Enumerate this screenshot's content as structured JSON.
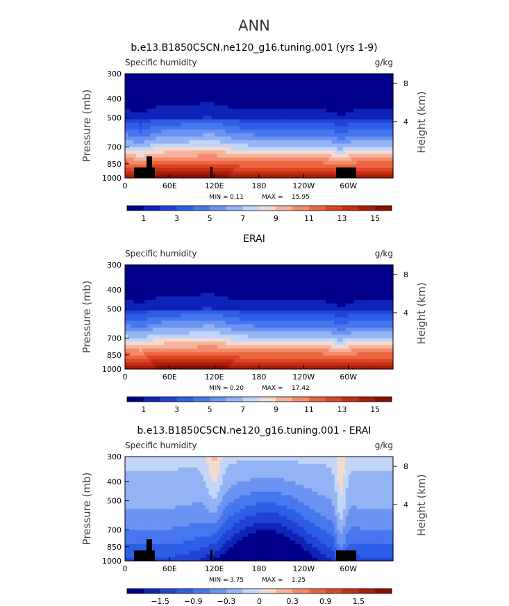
{
  "figure": {
    "title": "ANN"
  },
  "chart_data": [
    {
      "type": "heatmap",
      "title": "b.e13.B1850C5CN.ne120_g16.tuning.001 (yrs 1-9)",
      "variable": "Specific humidity",
      "units": "g/kg",
      "ylabel": "Pressure (mb)",
      "ylabel_right": "Height (km)",
      "x_ticks": [
        "0",
        "60E",
        "120E",
        "180",
        "120W",
        "60W"
      ],
      "x_range": [
        0,
        360
      ],
      "y_ticks": [
        "300",
        "400",
        "500",
        "700",
        "850",
        "1000"
      ],
      "y_range": [
        1000,
        300
      ],
      "y_log": true,
      "height_ticks": [
        "8",
        "4"
      ],
      "stats": {
        "min_label": "MIN =",
        "min": "0.11",
        "max_label": "MAX =",
        "max": "15.95"
      },
      "colorbar_labels": [
        "1",
        "3",
        "5",
        "7",
        "9",
        "11",
        "13",
        "15"
      ],
      "colors": [
        "#00008b",
        "#0f23b8",
        "#1f44d3",
        "#2e5ee6",
        "#4677ee",
        "#6a93f2",
        "#94b3f5",
        "#c3d6f7",
        "#f2dad0",
        "#f5b39c",
        "#f38b6b",
        "#ec6542",
        "#dd4525",
        "#c42e14",
        "#a81d0b",
        "#8b0e03"
      ]
    },
    {
      "type": "heatmap",
      "title": "ERAI",
      "variable": "Specific humidity",
      "units": "g/kg",
      "ylabel": "Pressure (mb)",
      "ylabel_right": "Height (km)",
      "x_ticks": [
        "0",
        "60E",
        "120E",
        "180",
        "120W",
        "60W"
      ],
      "x_range": [
        0,
        360
      ],
      "y_ticks": [
        "300",
        "400",
        "500",
        "700",
        "850",
        "1000"
      ],
      "y_range": [
        1000,
        300
      ],
      "y_log": true,
      "height_ticks": [
        "8",
        "4"
      ],
      "stats": {
        "min_label": "MIN =",
        "min": "0.20",
        "max_label": "MAX =",
        "max": "17.42"
      },
      "colorbar_labels": [
        "1",
        "3",
        "5",
        "7",
        "9",
        "11",
        "13",
        "15"
      ],
      "colors": [
        "#00008b",
        "#0f23b8",
        "#1f44d3",
        "#2e5ee6",
        "#4677ee",
        "#6a93f2",
        "#94b3f5",
        "#c3d6f7",
        "#f2dad0",
        "#f5b39c",
        "#f38b6b",
        "#ec6542",
        "#dd4525",
        "#c42e14",
        "#a81d0b",
        "#8b0e03"
      ]
    },
    {
      "type": "heatmap",
      "title": "b.e13.B1850C5CN.ne120_g16.tuning.001 - ERAI",
      "variable": "Specific humidity",
      "units": "g/kg",
      "ylabel": "Pressure (mb)",
      "ylabel_right": "Height (km)",
      "x_ticks": [
        "0",
        "60E",
        "120E",
        "180",
        "120W",
        "60W"
      ],
      "x_range": [
        0,
        360
      ],
      "y_ticks": [
        "300",
        "400",
        "500",
        "700",
        "850",
        "1000"
      ],
      "y_range": [
        1000,
        300
      ],
      "y_log": true,
      "height_ticks": [
        "8",
        "4"
      ],
      "stats": {
        "min_label": "MIN =",
        "min": "-3.75",
        "max_label": "MAX =",
        "max": "1.25"
      },
      "colorbar_labels": [
        "−1.5",
        "−0.9",
        "−0.3",
        "0",
        "0.3",
        "0.9",
        "1.5"
      ],
      "colors": [
        "#00008b",
        "#0f23b8",
        "#1f44d3",
        "#2e5ee6",
        "#4677ee",
        "#6a93f2",
        "#94b3f5",
        "#c3d6f7",
        "#f2dad0",
        "#f5b39c",
        "#f38b6b",
        "#ec6542",
        "#dd4525",
        "#c42e14",
        "#a81d0b",
        "#8b0e03"
      ]
    }
  ]
}
